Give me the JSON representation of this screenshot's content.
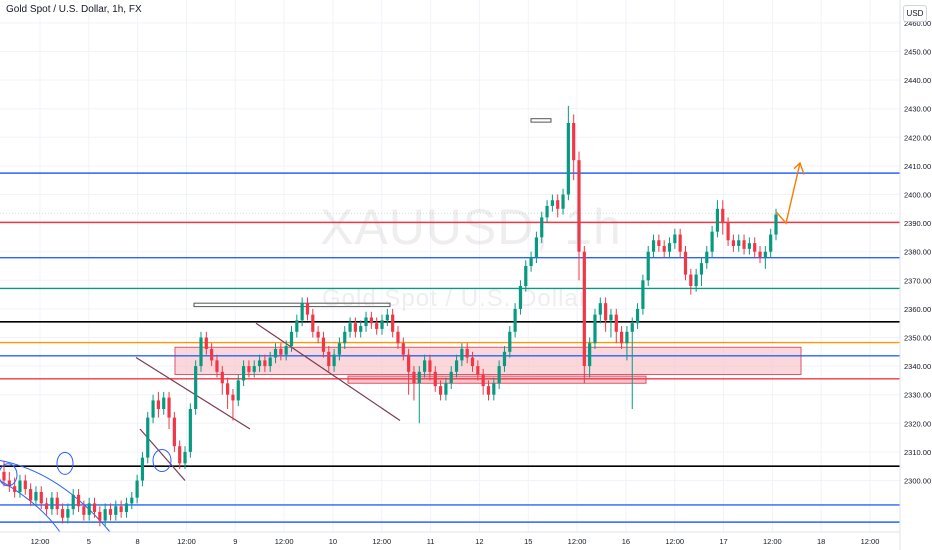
{
  "header": {
    "title": "Gold Spot / U.S. Dollar, 1h, FX",
    "currency": "USD"
  },
  "watermark": {
    "symbol": "XAUUSD, 1h",
    "name": "Gold Spot / U.S. Dollar"
  },
  "chart_data": {
    "type": "candlestick",
    "ylim": [
      2282,
      2468
    ],
    "y_ticks": [
      2300,
      2310,
      2320,
      2330,
      2340,
      2350,
      2360,
      2370,
      2380,
      2390,
      2400,
      2410,
      2420,
      2430,
      2440,
      2450,
      2460
    ],
    "x_ticks": [
      "12:00",
      "5",
      "8",
      "12:00",
      "9",
      "12:00",
      "10",
      "12:00",
      "11",
      "12",
      "15",
      "12:00",
      "16",
      "12:00",
      "17",
      "12:00",
      "18",
      "12:00"
    ],
    "colors": {
      "up": "#089981",
      "down": "#f23645",
      "grid": "#f0f3fa"
    },
    "horizontal_levels": [
      {
        "value": 2407.47,
        "label": "2407.47",
        "color": "#2962ff"
      },
      {
        "value": 2390.25,
        "label": "2390.25",
        "color": "#f23645"
      },
      {
        "value": 2377.91,
        "label": "2377.91",
        "color": "#2962ff"
      },
      {
        "value": 2367.16,
        "label": "2367.16",
        "color": "#089981"
      },
      {
        "value": 2355.47,
        "label": "2355.47",
        "color": "#000000"
      },
      {
        "value": 2348.23,
        "label": "2348.23",
        "color": "#ff9800"
      },
      {
        "value": 2343.59,
        "label": "2343.59",
        "color": "#2962ff"
      },
      {
        "value": 2335.56,
        "label": "2335.56",
        "color": "#f23645"
      },
      {
        "value": 2305.02,
        "label": "2305.02",
        "color": "#000000"
      },
      {
        "value": 2291.46,
        "label": "2291.46",
        "color": "#2962ff"
      },
      {
        "value": 2285.45,
        "label": "2285.45",
        "color": "#2962ff"
      }
    ],
    "last_price": {
      "value": 2393.45,
      "label": "2393.45",
      "color": "#089981"
    },
    "zone": {
      "low": 2335.56,
      "high": 2343.59,
      "color": "#f7c6cc"
    },
    "trend": "upward projection after breakout above 2390.25",
    "candles": [
      [
        2303,
        2300,
        2307,
        2298
      ],
      [
        2300,
        2298,
        2303,
        2296
      ],
      [
        2298,
        2296,
        2301,
        2294
      ],
      [
        2296,
        2300,
        2302,
        2294
      ],
      [
        2300,
        2297,
        2302,
        2295
      ],
      [
        2297,
        2293,
        2299,
        2291
      ],
      [
        2293,
        2296,
        2298,
        2291
      ],
      [
        2296,
        2292,
        2298,
        2290
      ],
      [
        2292,
        2290,
        2294,
        2288
      ],
      [
        2290,
        2294,
        2296,
        2288
      ],
      [
        2294,
        2290,
        2296,
        2288
      ],
      [
        2290,
        2287,
        2292,
        2285
      ],
      [
        2287,
        2290,
        2292,
        2285
      ],
      [
        2290,
        2295,
        2297,
        2288
      ],
      [
        2295,
        2291,
        2297,
        2289
      ],
      [
        2291,
        2288,
        2293,
        2286
      ],
      [
        2288,
        2292,
        2294,
        2286
      ],
      [
        2292,
        2289,
        2294,
        2287
      ],
      [
        2289,
        2286,
        2291,
        2284
      ],
      [
        2286,
        2290,
        2292,
        2284
      ],
      [
        2290,
        2288,
        2292,
        2286
      ],
      [
        2288,
        2291,
        2293,
        2286
      ],
      [
        2291,
        2289,
        2293,
        2287
      ],
      [
        2289,
        2292,
        2294,
        2287
      ],
      [
        2292,
        2294,
        2296,
        2290
      ],
      [
        2294,
        2300,
        2302,
        2292
      ],
      [
        2300,
        2308,
        2310,
        2298
      ],
      [
        2308,
        2322,
        2324,
        2306
      ],
      [
        2322,
        2328,
        2330,
        2320
      ],
      [
        2328,
        2325,
        2331,
        2322
      ],
      [
        2325,
        2329,
        2331,
        2323
      ],
      [
        2329,
        2322,
        2331,
        2318
      ],
      [
        2322,
        2312,
        2324,
        2310
      ],
      [
        2312,
        2306,
        2314,
        2304
      ],
      [
        2306,
        2310,
        2312,
        2304
      ],
      [
        2310,
        2325,
        2327,
        2308
      ],
      [
        2325,
        2340,
        2342,
        2323
      ],
      [
        2340,
        2350,
        2352,
        2338
      ],
      [
        2350,
        2346,
        2352,
        2344
      ],
      [
        2346,
        2342,
        2348,
        2340
      ],
      [
        2342,
        2338,
        2344,
        2336
      ],
      [
        2338,
        2334,
        2340,
        2330
      ],
      [
        2334,
        2330,
        2336,
        2325
      ],
      [
        2330,
        2328,
        2332,
        2321
      ],
      [
        2328,
        2335,
        2337,
        2326
      ],
      [
        2335,
        2340,
        2342,
        2333
      ],
      [
        2340,
        2338,
        2342,
        2336
      ],
      [
        2338,
        2340,
        2342,
        2336
      ],
      [
        2340,
        2342,
        2344,
        2338
      ],
      [
        2342,
        2340,
        2344,
        2338
      ],
      [
        2340,
        2343,
        2345,
        2338
      ],
      [
        2343,
        2346,
        2348,
        2341
      ],
      [
        2346,
        2344,
        2348,
        2342
      ],
      [
        2344,
        2347,
        2349,
        2342
      ],
      [
        2347,
        2352,
        2354,
        2345
      ],
      [
        2352,
        2356,
        2358,
        2350
      ],
      [
        2356,
        2362,
        2364,
        2354
      ],
      [
        2362,
        2358,
        2364,
        2356
      ],
      [
        2358,
        2352,
        2360,
        2350
      ],
      [
        2352,
        2350,
        2354,
        2348
      ],
      [
        2350,
        2345,
        2352,
        2343
      ],
      [
        2345,
        2340,
        2347,
        2338
      ],
      [
        2340,
        2344,
        2346,
        2338
      ],
      [
        2344,
        2348,
        2350,
        2342
      ],
      [
        2348,
        2352,
        2354,
        2346
      ],
      [
        2352,
        2355,
        2357,
        2350
      ],
      [
        2355,
        2352,
        2357,
        2350
      ],
      [
        2352,
        2354,
        2356,
        2350
      ],
      [
        2354,
        2357,
        2359,
        2352
      ],
      [
        2357,
        2355,
        2359,
        2353
      ],
      [
        2355,
        2353,
        2357,
        2351
      ],
      [
        2353,
        2356,
        2358,
        2351
      ],
      [
        2356,
        2358,
        2360,
        2354
      ],
      [
        2358,
        2352,
        2360,
        2350
      ],
      [
        2352,
        2348,
        2354,
        2346
      ],
      [
        2348,
        2344,
        2350,
        2342
      ],
      [
        2344,
        2338,
        2346,
        2330
      ],
      [
        2338,
        2334,
        2340,
        2328
      ],
      [
        2334,
        2338,
        2340,
        2320
      ],
      [
        2338,
        2342,
        2344,
        2336
      ],
      [
        2342,
        2338,
        2344,
        2335
      ],
      [
        2338,
        2333,
        2340,
        2331
      ],
      [
        2333,
        2330,
        2335,
        2328
      ],
      [
        2330,
        2334,
        2336,
        2328
      ],
      [
        2334,
        2338,
        2340,
        2332
      ],
      [
        2338,
        2342,
        2344,
        2336
      ],
      [
        2342,
        2346,
        2348,
        2340
      ],
      [
        2346,
        2343,
        2348,
        2341
      ],
      [
        2343,
        2340,
        2345,
        2338
      ],
      [
        2340,
        2337,
        2342,
        2335
      ],
      [
        2337,
        2333,
        2339,
        2330
      ],
      [
        2333,
        2330,
        2335,
        2328
      ],
      [
        2330,
        2334,
        2336,
        2328
      ],
      [
        2334,
        2340,
        2342,
        2332
      ],
      [
        2340,
        2345,
        2347,
        2338
      ],
      [
        2345,
        2352,
        2354,
        2343
      ],
      [
        2352,
        2360,
        2362,
        2350
      ],
      [
        2360,
        2368,
        2370,
        2358
      ],
      [
        2368,
        2375,
        2377,
        2366
      ],
      [
        2375,
        2378,
        2380,
        2373
      ],
      [
        2378,
        2385,
        2387,
        2376
      ],
      [
        2385,
        2392,
        2394,
        2383
      ],
      [
        2392,
        2396,
        2398,
        2390
      ],
      [
        2396,
        2398,
        2400,
        2394
      ],
      [
        2398,
        2395,
        2400,
        2392
      ],
      [
        2395,
        2400,
        2402,
        2393
      ],
      [
        2400,
        2425,
        2431,
        2398
      ],
      [
        2425,
        2412,
        2428,
        2405
      ],
      [
        2412,
        2380,
        2415,
        2370
      ],
      [
        2380,
        2340,
        2382,
        2334
      ],
      [
        2340,
        2348,
        2350,
        2336
      ],
      [
        2348,
        2358,
        2360,
        2346
      ],
      [
        2358,
        2362,
        2364,
        2355
      ],
      [
        2362,
        2356,
        2364,
        2352
      ],
      [
        2356,
        2358,
        2360,
        2350
      ],
      [
        2358,
        2352,
        2360,
        2348
      ],
      [
        2352,
        2348,
        2354,
        2346
      ],
      [
        2348,
        2352,
        2354,
        2342
      ],
      [
        2352,
        2355,
        2357,
        2325
      ],
      [
        2355,
        2360,
        2362,
        2353
      ],
      [
        2360,
        2370,
        2372,
        2358
      ],
      [
        2370,
        2380,
        2382,
        2368
      ],
      [
        2380,
        2384,
        2386,
        2378
      ],
      [
        2384,
        2382,
        2386,
        2380
      ],
      [
        2382,
        2380,
        2384,
        2378
      ],
      [
        2380,
        2383,
        2385,
        2378
      ],
      [
        2383,
        2386,
        2388,
        2381
      ],
      [
        2386,
        2380,
        2388,
        2378
      ],
      [
        2380,
        2372,
        2382,
        2370
      ],
      [
        2372,
        2368,
        2374,
        2365
      ],
      [
        2368,
        2372,
        2374,
        2366
      ],
      [
        2372,
        2376,
        2378,
        2368
      ],
      [
        2376,
        2380,
        2382,
        2374
      ],
      [
        2380,
        2387,
        2389,
        2378
      ],
      [
        2387,
        2395,
        2398,
        2385
      ],
      [
        2395,
        2390,
        2398,
        2386
      ],
      [
        2390,
        2384,
        2392,
        2382
      ],
      [
        2384,
        2382,
        2386,
        2380
      ],
      [
        2382,
        2384,
        2386,
        2380
      ],
      [
        2384,
        2381,
        2386,
        2379
      ],
      [
        2381,
        2383,
        2385,
        2379
      ],
      [
        2383,
        2380,
        2385,
        2378
      ],
      [
        2380,
        2378,
        2382,
        2376
      ],
      [
        2378,
        2380,
        2382,
        2374
      ],
      [
        2380,
        2386,
        2388,
        2378
      ],
      [
        2386,
        2393,
        2395,
        2384
      ]
    ]
  }
}
